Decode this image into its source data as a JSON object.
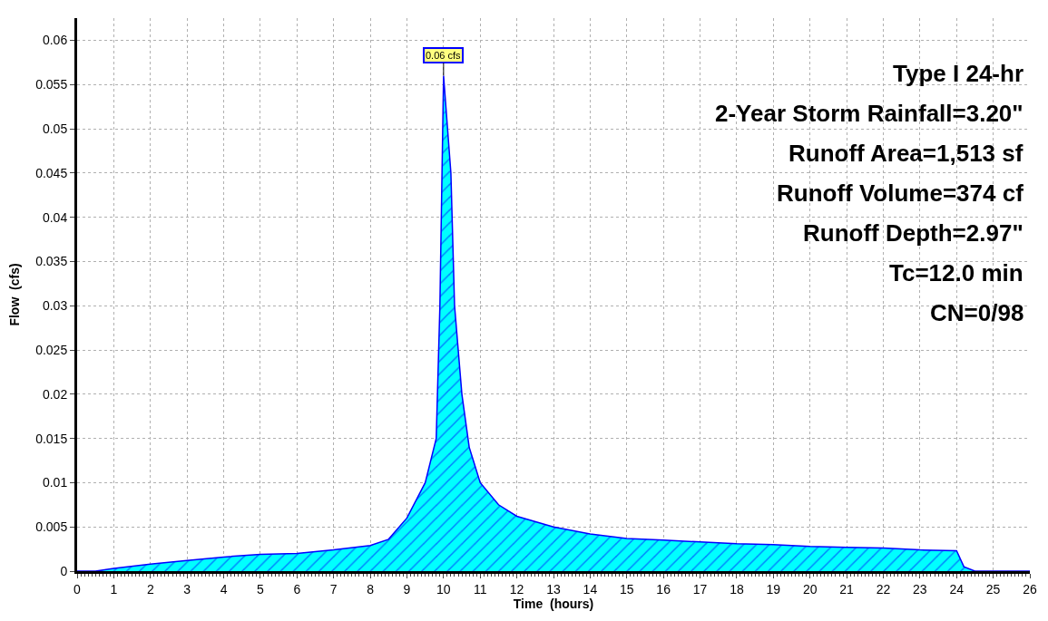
{
  "chart_data": {
    "type": "area",
    "xlabel": "Time  (hours)",
    "ylabel": "Flow  (cfs)",
    "x": [
      0,
      0.5,
      1,
      2,
      3,
      4,
      5,
      6,
      7,
      8,
      8.5,
      9,
      9.5,
      9.8,
      9.9,
      10.0,
      10.2,
      10.3,
      10.5,
      10.7,
      11,
      11.5,
      12,
      13,
      14,
      15,
      16,
      17,
      18,
      19,
      20,
      21,
      22,
      23,
      24,
      24.2,
      24.5,
      26
    ],
    "series": [
      {
        "color": "#00ffff",
        "values": [
          0,
          0,
          0.0003,
          0.0008,
          0.0012,
          0.0016,
          0.0019,
          0.002,
          0.0024,
          0.0029,
          0.0036,
          0.006,
          0.01,
          0.015,
          0.03,
          0.056,
          0.045,
          0.03,
          0.02,
          0.014,
          0.01,
          0.0075,
          0.0062,
          0.005,
          0.0042,
          0.0037,
          0.0035,
          0.0033,
          0.0031,
          0.003,
          0.0028,
          0.0027,
          0.0026,
          0.0024,
          0.0023,
          0.0005,
          0,
          0
        ]
      }
    ],
    "xlim": [
      0,
      26
    ],
    "xticks": [
      0,
      1,
      2,
      3,
      4,
      5,
      6,
      7,
      8,
      9,
      10,
      11,
      12,
      13,
      14,
      15,
      16,
      17,
      18,
      19,
      20,
      21,
      22,
      23,
      24,
      25,
      26
    ],
    "ylim": [
      0,
      0.0625
    ],
    "yticks": [
      0,
      0.005,
      0.01,
      0.015,
      0.02,
      0.025,
      0.03,
      0.035,
      0.04,
      0.045,
      0.05,
      0.055,
      0.06
    ],
    "grid": true,
    "annotations": [
      {
        "text": "0.06 cfs",
        "x": 10.0,
        "y": 0.056
      },
      "Type I 24-hr",
      "2-Year Storm Rainfall=3.20\"",
      "Runoff Area=1,513 sf",
      "Runoff Volume=374 cf",
      "Runoff Depth=2.97\"",
      "Tc=12.0 min",
      "CN=0/98"
    ]
  }
}
